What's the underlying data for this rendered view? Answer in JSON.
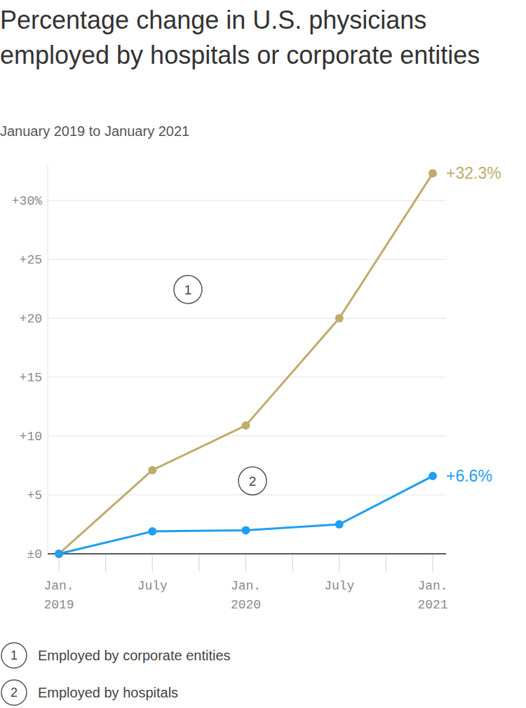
{
  "chart_data": {
    "type": "line",
    "title": "Percentage change in U.S. physicians employed by hospitals or corporate entities",
    "subtitle": "January 2019 to January 2021",
    "categories": [
      "Jan. 2019",
      "July",
      "Jan. 2020",
      "July",
      "Jan. 2021"
    ],
    "series": [
      {
        "name": "Employed by corporate entities",
        "label": "1",
        "color": "#bfac6a",
        "marker": "circle",
        "values": [
          0,
          7.1,
          10.9,
          20,
          32.3
        ],
        "value_labels": [
          null,
          null,
          null,
          null,
          "+32.3%"
        ]
      },
      {
        "name": "Employed by hospitals",
        "label": "2",
        "color": "#1f9ff0",
        "marker": "circle",
        "values": [
          0,
          1.9,
          2.0,
          2.5,
          6.6
        ],
        "value_labels": [
          null,
          null,
          null,
          null,
          "+6.6%"
        ]
      }
    ],
    "ylim": [
      0,
      33
    ],
    "yticks": [
      {
        "value": 0,
        "label": "±0"
      },
      {
        "value": 5,
        "label": "+5"
      },
      {
        "value": 10,
        "label": "+10"
      },
      {
        "value": 15,
        "label": "+15"
      },
      {
        "value": 20,
        "label": "+20"
      },
      {
        "value": 25,
        "label": "+25"
      },
      {
        "value": 30,
        "label": "+30%"
      }
    ],
    "grid": true,
    "data_labels": true
  }
}
